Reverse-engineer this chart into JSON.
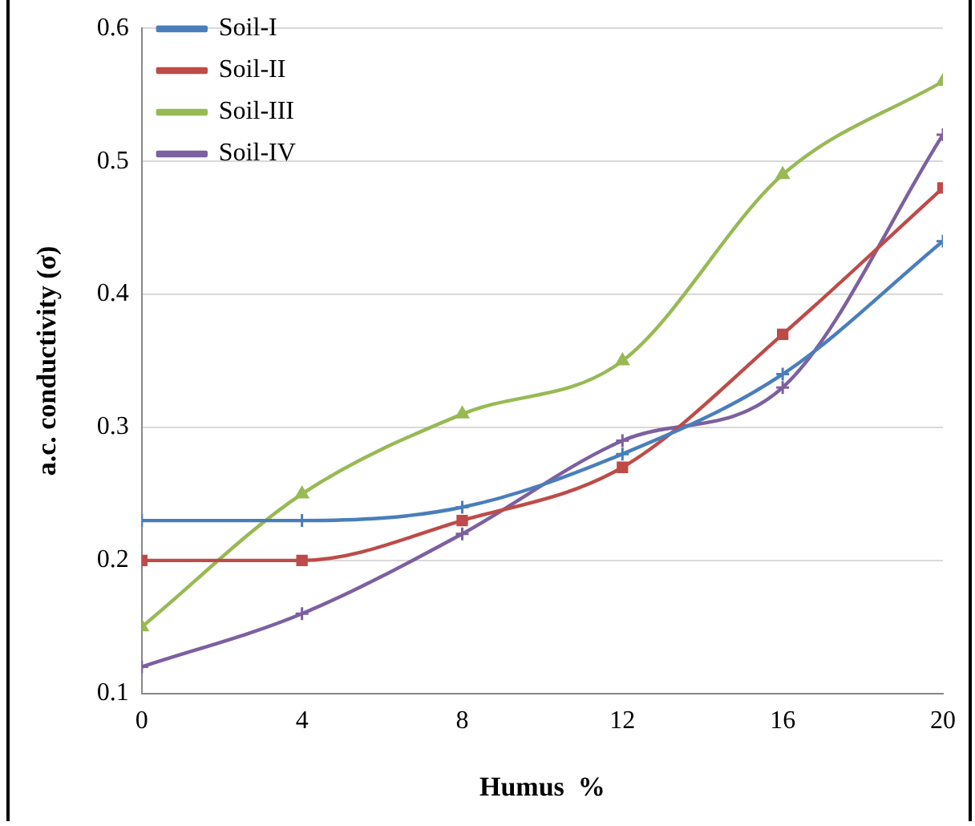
{
  "chart_data": {
    "type": "line",
    "xlabel": "Humus  %",
    "ylabel": "a.c. conductivity (σ)",
    "x": [
      0,
      4,
      8,
      12,
      16,
      20
    ],
    "xlim": [
      0,
      20
    ],
    "xticks": [
      0,
      4,
      8,
      12,
      16,
      20
    ],
    "ylim": [
      0.1,
      0.6
    ],
    "yticks": [
      0.1,
      0.2,
      0.3,
      0.4,
      0.5,
      0.6
    ],
    "grid": "y",
    "legend": "top left",
    "line_style": "solid",
    "series": [
      {
        "name": "Soil-I",
        "color": "#4a7ebb",
        "marker": "cross",
        "values": [
          0.23,
          0.23,
          0.24,
          0.28,
          0.34,
          0.44
        ]
      },
      {
        "name": "Soil-II",
        "color": "#be4b48",
        "marker": "square",
        "values": [
          0.2,
          0.2,
          0.23,
          0.27,
          0.37,
          0.48
        ]
      },
      {
        "name": "Soil-III",
        "color": "#98b954",
        "marker": "triangle",
        "values": [
          0.15,
          0.25,
          0.31,
          0.35,
          0.49,
          0.56
        ]
      },
      {
        "name": "Soil-IV",
        "color": "#7d60a0",
        "marker": "cross",
        "values": [
          0.12,
          0.16,
          0.22,
          0.29,
          0.33,
          0.52
        ]
      }
    ]
  }
}
